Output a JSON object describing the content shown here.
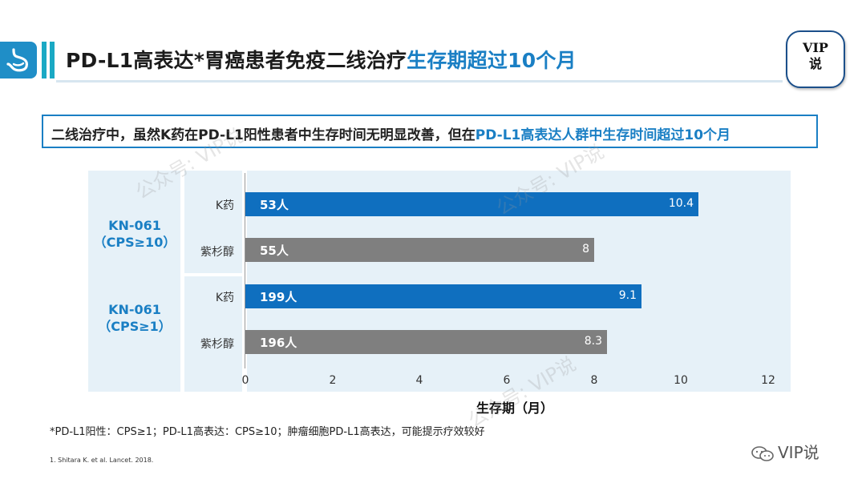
{
  "header": {
    "title_main": "PD-L1高表达*胃癌患者免疫二线治疗",
    "title_highlight": "生存期超过10个月",
    "badge_line1": "VIP",
    "badge_line2": "说",
    "accent_color": "#1a7fc4"
  },
  "callout": {
    "text_main": "二线治疗中，虽然K药在PD-L1阳性患者中生存时间无明显改善，但在",
    "text_highlight": "PD-L1高表达人群中生存时间超过10个月"
  },
  "chart_data": {
    "type": "bar",
    "orientation": "horizontal",
    "groups": [
      {
        "label_line1": "KN-061",
        "label_line2": "（CPS≥10）"
      },
      {
        "label_line1": "KN-061",
        "label_line2": "（CPS≥1）"
      }
    ],
    "bars": [
      {
        "group": 0,
        "arm": "K药",
        "n_label": "53人",
        "value": 10.4,
        "value_label": "10.4",
        "color": "#0f6fbf"
      },
      {
        "group": 0,
        "arm": "紫杉醇",
        "n_label": "55人",
        "value": 8,
        "value_label": "8",
        "color": "#7f7f7f"
      },
      {
        "group": 1,
        "arm": "K药",
        "n_label": "199人",
        "value": 9.1,
        "value_label": "9.1",
        "color": "#0f6fbf"
      },
      {
        "group": 1,
        "arm": "紫杉醇",
        "n_label": "196人",
        "value": 8.3,
        "value_label": "8.3",
        "color": "#7f7f7f"
      }
    ],
    "xlim": [
      0,
      12
    ],
    "xticks": [
      "0",
      "2",
      "4",
      "6",
      "8",
      "10",
      "12"
    ],
    "xlabel": "生存期（月）"
  },
  "footnote": "*PD-L1阳性：CPS≥1；PD-L1高表达：CPS≥10；肿瘤细胞PD-L1高表达，可能提示疗效较好",
  "reference": "1.  Shitara K. et al. Lancet. 2018.",
  "watermarks": {
    "text1": "公众号: VIP说",
    "brand": "VIP说"
  }
}
